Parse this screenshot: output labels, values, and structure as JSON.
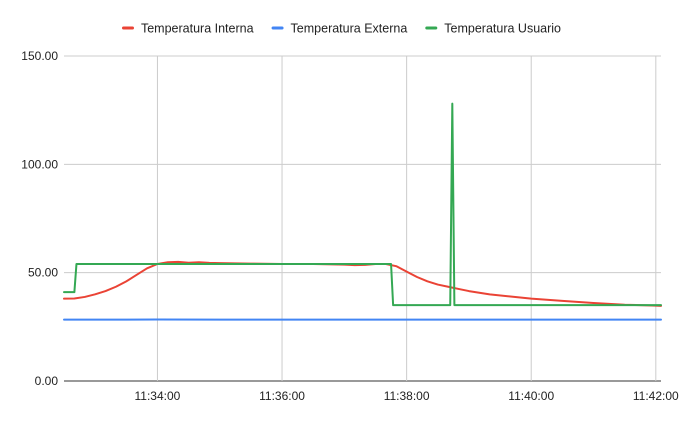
{
  "chart_data": {
    "type": "line",
    "title": "",
    "xlabel": "",
    "ylabel": "",
    "legend_position": "top",
    "grid": true,
    "xlim": [
      "11:32:30",
      "11:42:05"
    ],
    "ylim": [
      0,
      150
    ],
    "x_ticks": [
      "11:34:00",
      "11:36:00",
      "11:38:00",
      "11:40:00",
      "11:42:00"
    ],
    "y_ticks": [
      "0.00",
      "50.00",
      "100.00",
      "150.00"
    ],
    "series": [
      {
        "name": "Temperatura Interna",
        "color": "#ea4335",
        "points": [
          [
            "11:32:30",
            38.0
          ],
          [
            "11:32:40",
            38.1
          ],
          [
            "11:32:50",
            38.8
          ],
          [
            "11:33:00",
            40.0
          ],
          [
            "11:33:10",
            41.5
          ],
          [
            "11:33:20",
            43.5
          ],
          [
            "11:33:30",
            46.0
          ],
          [
            "11:33:40",
            49.0
          ],
          [
            "11:33:50",
            52.0
          ],
          [
            "11:34:00",
            54.0
          ],
          [
            "11:34:10",
            54.8
          ],
          [
            "11:34:20",
            55.0
          ],
          [
            "11:34:30",
            54.6
          ],
          [
            "11:34:40",
            54.8
          ],
          [
            "11:34:50",
            54.5
          ],
          [
            "11:35:00",
            54.4
          ],
          [
            "11:35:30",
            54.2
          ],
          [
            "11:36:00",
            54.0
          ],
          [
            "11:36:30",
            54.0
          ],
          [
            "11:37:00",
            53.7
          ],
          [
            "11:37:10",
            53.5
          ],
          [
            "11:37:20",
            53.6
          ],
          [
            "11:37:30",
            54.0
          ],
          [
            "11:37:40",
            54.0
          ],
          [
            "11:37:50",
            53.0
          ],
          [
            "11:38:00",
            50.5
          ],
          [
            "11:38:10",
            48.0
          ],
          [
            "11:38:20",
            46.0
          ],
          [
            "11:38:30",
            44.5
          ],
          [
            "11:38:40",
            43.5
          ],
          [
            "11:38:50",
            42.5
          ],
          [
            "11:39:00",
            41.5
          ],
          [
            "11:39:20",
            40.0
          ],
          [
            "11:39:40",
            39.0
          ],
          [
            "11:40:00",
            38.0
          ],
          [
            "11:40:30",
            37.0
          ],
          [
            "11:41:00",
            36.0
          ],
          [
            "11:41:30",
            35.2
          ],
          [
            "11:42:00",
            34.8
          ],
          [
            "11:42:05",
            34.7
          ]
        ]
      },
      {
        "name": "Temperatura Externa",
        "color": "#4285f4",
        "points": [
          [
            "11:32:30",
            28.3
          ],
          [
            "11:33:00",
            28.3
          ],
          [
            "11:34:00",
            28.4
          ],
          [
            "11:35:00",
            28.3
          ],
          [
            "11:36:00",
            28.3
          ],
          [
            "11:37:00",
            28.3
          ],
          [
            "11:38:00",
            28.3
          ],
          [
            "11:39:00",
            28.3
          ],
          [
            "11:40:00",
            28.3
          ],
          [
            "11:41:00",
            28.3
          ],
          [
            "11:42:05",
            28.3
          ]
        ]
      },
      {
        "name": "Temperatura Usuario",
        "color": "#34a853",
        "points": [
          [
            "11:32:30",
            41.0
          ],
          [
            "11:32:40",
            41.0
          ],
          [
            "11:32:42",
            54.0
          ],
          [
            "11:37:45",
            54.0
          ],
          [
            "11:37:47",
            35.0
          ],
          [
            "11:38:42",
            35.0
          ],
          [
            "11:38:44",
            128.0
          ],
          [
            "11:38:46",
            35.0
          ],
          [
            "11:42:05",
            35.0
          ]
        ]
      }
    ]
  }
}
